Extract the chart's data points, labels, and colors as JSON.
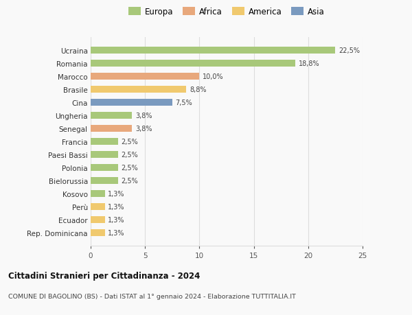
{
  "categories": [
    "Rep. Dominicana",
    "Ecuador",
    "Perù",
    "Kosovo",
    "Bielorussia",
    "Polonia",
    "Paesi Bassi",
    "Francia",
    "Senegal",
    "Ungheria",
    "Cina",
    "Brasile",
    "Marocco",
    "Romania",
    "Ucraina"
  ],
  "values": [
    1.3,
    1.3,
    1.3,
    1.3,
    2.5,
    2.5,
    2.5,
    2.5,
    3.8,
    3.8,
    7.5,
    8.8,
    10.0,
    18.8,
    22.5
  ],
  "colors": [
    "#f0c96e",
    "#f0c96e",
    "#f0c96e",
    "#a8c87a",
    "#a8c87a",
    "#a8c87a",
    "#a8c87a",
    "#a8c87a",
    "#e8a87c",
    "#a8c87a",
    "#7a9abf",
    "#f0c96e",
    "#e8a87c",
    "#a8c87a",
    "#a8c87a"
  ],
  "labels": [
    "1,3%",
    "1,3%",
    "1,3%",
    "1,3%",
    "2,5%",
    "2,5%",
    "2,5%",
    "2,5%",
    "3,8%",
    "3,8%",
    "7,5%",
    "8,8%",
    "10,0%",
    "18,8%",
    "22,5%"
  ],
  "legend": [
    {
      "label": "Europa",
      "color": "#a8c87a"
    },
    {
      "label": "Africa",
      "color": "#e8a87c"
    },
    {
      "label": "America",
      "color": "#f0c96e"
    },
    {
      "label": "Asia",
      "color": "#7a9abf"
    }
  ],
  "xlim": [
    0,
    25
  ],
  "xticks": [
    0,
    5,
    10,
    15,
    20,
    25
  ],
  "title": "Cittadini Stranieri per Cittadinanza - 2024",
  "subtitle": "COMUNE DI BAGOLINO (BS) - Dati ISTAT al 1° gennaio 2024 - Elaborazione TUTTITALIA.IT",
  "background_color": "#f9f9f9",
  "grid_color": "#dddddd",
  "bar_height": 0.55
}
